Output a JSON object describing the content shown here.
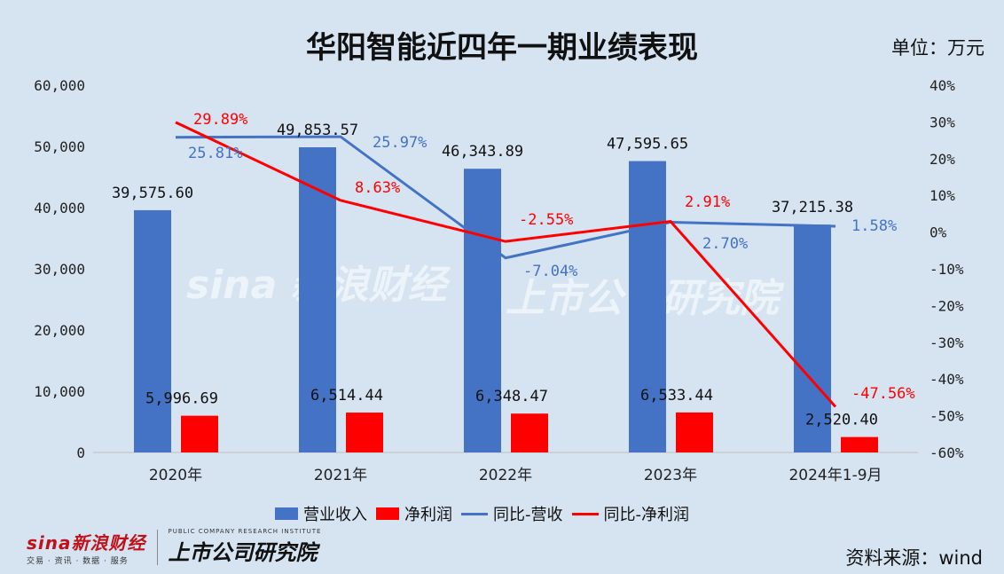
{
  "title": "华阳智能近四年一期业绩表现",
  "unit": "单位：万元",
  "source": "资料来源：wind",
  "brand": {
    "sina": "sina新浪财经",
    "sina_sub": "交易 · 资讯 · 数据 · 服务",
    "research": "上市公司研究院",
    "research_sub": "PUBLIC COMPANY RESEARCH INSTITUTE"
  },
  "colors": {
    "revenue": "#4472c4",
    "profit": "#ff0000",
    "revenue_yoy": "#4472c4",
    "profit_yoy": "#ff0000"
  },
  "chart_data": {
    "type": "bar",
    "categories": [
      "2020年",
      "2021年",
      "2022年",
      "2023年",
      "2024年1-9月"
    ],
    "left_axis": {
      "ylim": [
        0,
        60000
      ],
      "ticks": [
        "0",
        "10,000",
        "20,000",
        "30,000",
        "40,000",
        "50,000",
        "60,000"
      ]
    },
    "right_axis": {
      "ylim": [
        -60,
        40
      ],
      "ticks": [
        "-60%",
        "-50%",
        "-40%",
        "-30%",
        "-20%",
        "-10%",
        "0%",
        "10%",
        "20%",
        "30%",
        "40%"
      ]
    },
    "series": [
      {
        "name": "营业收入",
        "kind": "bar",
        "axis": "left",
        "values": [
          39575.6,
          49853.57,
          46343.89,
          47595.65,
          37215.38
        ],
        "labels": [
          "39,575.60",
          "49,853.57",
          "46,343.89",
          "47,595.65",
          "37,215.38"
        ]
      },
      {
        "name": "净利润",
        "kind": "bar",
        "axis": "left",
        "values": [
          5996.69,
          6514.44,
          6348.47,
          6533.44,
          2520.4
        ],
        "labels": [
          "5,996.69",
          "6,514.44",
          "6,348.47",
          "6,533.44",
          "2,520.40"
        ]
      },
      {
        "name": "同比-营收",
        "kind": "line",
        "axis": "right",
        "values": [
          25.81,
          25.97,
          -7.04,
          2.7,
          1.58
        ],
        "labels": [
          "25.81%",
          "25.97%",
          "-7.04%",
          "2.70%",
          "1.58%"
        ]
      },
      {
        "name": "同比-净利润",
        "kind": "line",
        "axis": "right",
        "values": [
          29.89,
          8.63,
          -2.55,
          2.91,
          -47.56
        ],
        "labels": [
          "29.89%",
          "8.63%",
          "-2.55%",
          "2.91%",
          "-47.56%"
        ]
      }
    ],
    "legend": "bottom",
    "grid": false
  }
}
